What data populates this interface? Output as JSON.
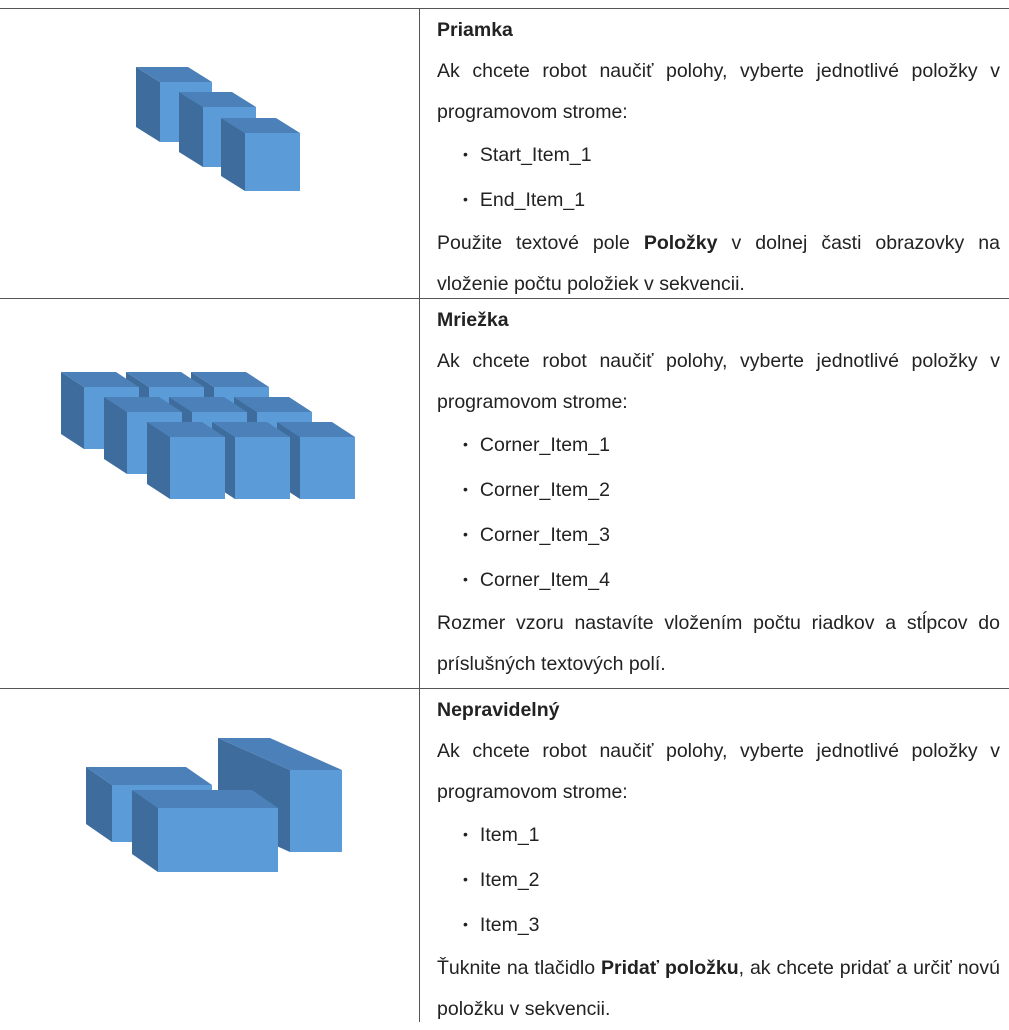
{
  "rows": [
    {
      "title": "Priamka",
      "intro": "Ak chcete robot naučiť polohy, vyberte jednotlivé položky v programovom strome:",
      "items": [
        "Start_Item_1",
        "End_Item_1"
      ],
      "note": [
        {
          "text": "Použite textové pole ",
          "bold": false
        },
        {
          "text": "Položky",
          "bold": true
        },
        {
          "text": " v dolnej časti obrazovky na vloženie počtu položiek v sekvencii.",
          "bold": false
        }
      ]
    },
    {
      "title": "Mriežka",
      "intro": "Ak chcete robot naučiť polohy, vyberte jednotlivé položky v programovom strome:",
      "items": [
        "Corner_Item_1",
        "Corner_Item_2",
        "Corner_Item_3",
        "Corner_Item_4"
      ],
      "note": [
        {
          "text": "Rozmer vzoru nastavíte vložením počtu riadkov a stĺpcov do príslušných textových polí.",
          "bold": false
        }
      ]
    },
    {
      "title": "Nepravidelný",
      "intro": "Ak chcete robot naučiť polohy, vyberte jednotlivé položky v programovom strome:",
      "items": [
        "Item_1",
        "Item_2",
        "Item_3"
      ],
      "note": [
        {
          "text": "Ťuknite na tlačidlo ",
          "bold": false
        },
        {
          "text": "Pridať položku",
          "bold": true
        },
        {
          "text": ", ak chcete pridať a určiť novú položku v sekvencii.",
          "bold": false
        }
      ]
    }
  ]
}
